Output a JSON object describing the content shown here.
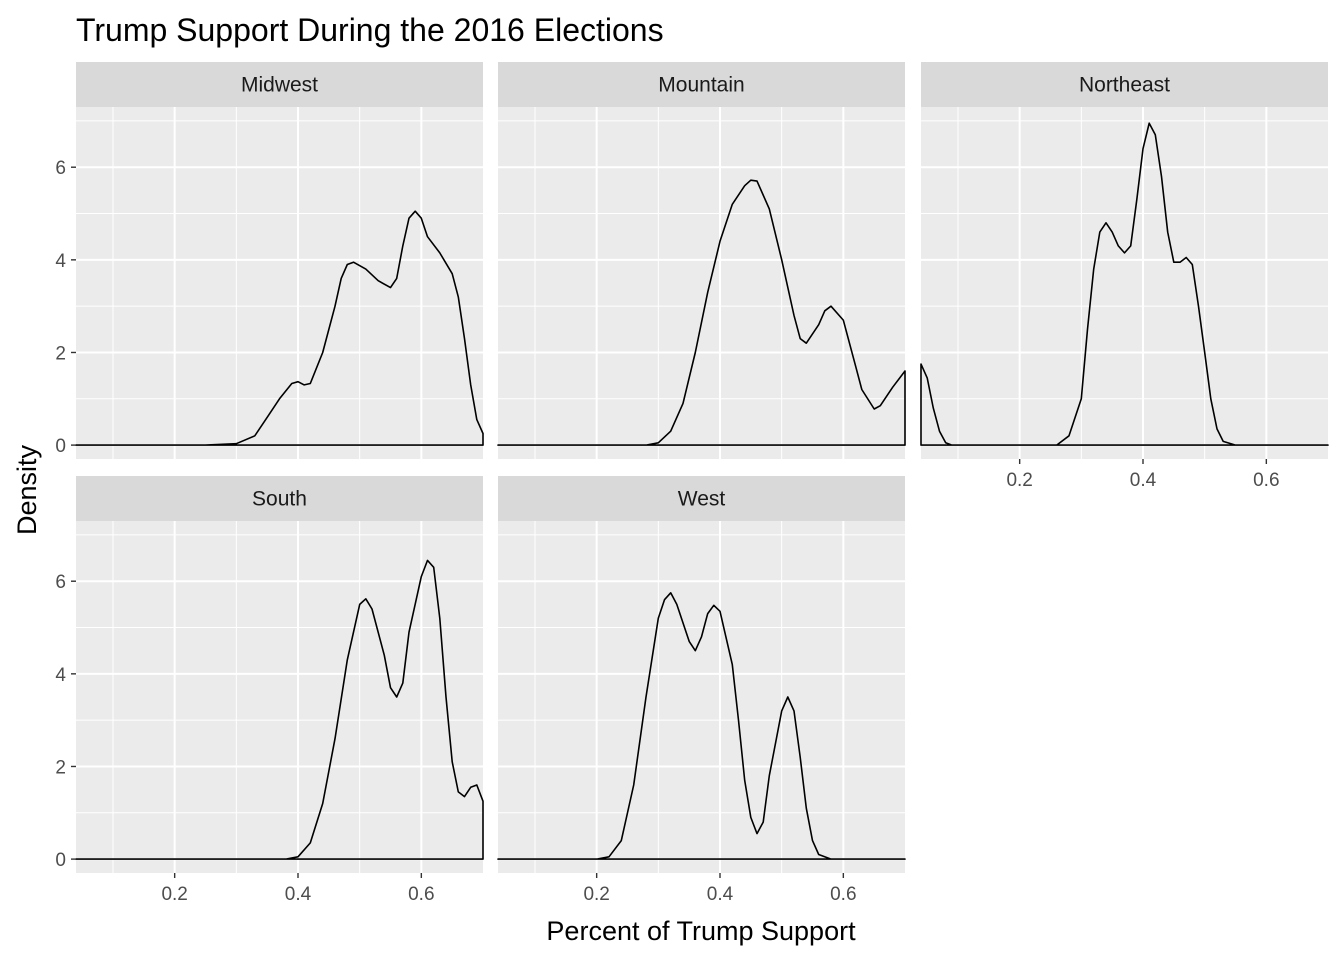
{
  "chart_data": {
    "type": "area",
    "title": "Trump Support During the 2016 Elections",
    "xlabel": "Percent of Trump Support",
    "ylabel": "Density",
    "xlim": [
      0.04,
      0.7
    ],
    "ylim": [
      -0.3,
      7.3
    ],
    "x_ticks": [
      0.2,
      0.4,
      0.6
    ],
    "x_tick_labels": [
      "0.2",
      "0.4",
      "0.6"
    ],
    "y_ticks": [
      0,
      2,
      4,
      6
    ],
    "y_tick_labels": [
      "0",
      "2",
      "4",
      "6"
    ],
    "grid": true,
    "facets": [
      {
        "name": "Midwest",
        "points": [
          [
            0.04,
            0
          ],
          [
            0.25,
            0
          ],
          [
            0.3,
            0.03
          ],
          [
            0.33,
            0.2
          ],
          [
            0.35,
            0.6
          ],
          [
            0.37,
            1.0
          ],
          [
            0.39,
            1.33
          ],
          [
            0.4,
            1.37
          ],
          [
            0.41,
            1.3
          ],
          [
            0.42,
            1.33
          ],
          [
            0.44,
            2.0
          ],
          [
            0.46,
            3.0
          ],
          [
            0.47,
            3.6
          ],
          [
            0.48,
            3.9
          ],
          [
            0.49,
            3.95
          ],
          [
            0.51,
            3.8
          ],
          [
            0.53,
            3.55
          ],
          [
            0.55,
            3.4
          ],
          [
            0.56,
            3.6
          ],
          [
            0.57,
            4.3
          ],
          [
            0.58,
            4.9
          ],
          [
            0.59,
            5.05
          ],
          [
            0.6,
            4.9
          ],
          [
            0.61,
            4.5
          ],
          [
            0.63,
            4.15
          ],
          [
            0.65,
            3.7
          ],
          [
            0.66,
            3.2
          ],
          [
            0.67,
            2.3
          ],
          [
            0.68,
            1.3
          ],
          [
            0.69,
            0.55
          ],
          [
            0.7,
            0.25
          ],
          [
            0.7,
            0
          ]
        ]
      },
      {
        "name": "Mountain",
        "points": [
          [
            0.04,
            0
          ],
          [
            0.28,
            0
          ],
          [
            0.3,
            0.05
          ],
          [
            0.32,
            0.3
          ],
          [
            0.34,
            0.9
          ],
          [
            0.36,
            2.0
          ],
          [
            0.38,
            3.3
          ],
          [
            0.4,
            4.4
          ],
          [
            0.42,
            5.2
          ],
          [
            0.44,
            5.6
          ],
          [
            0.45,
            5.72
          ],
          [
            0.46,
            5.7
          ],
          [
            0.48,
            5.1
          ],
          [
            0.5,
            4.0
          ],
          [
            0.52,
            2.8
          ],
          [
            0.53,
            2.3
          ],
          [
            0.54,
            2.2
          ],
          [
            0.56,
            2.6
          ],
          [
            0.57,
            2.9
          ],
          [
            0.58,
            3.0
          ],
          [
            0.6,
            2.7
          ],
          [
            0.62,
            1.7
          ],
          [
            0.63,
            1.2
          ],
          [
            0.65,
            0.78
          ],
          [
            0.66,
            0.85
          ],
          [
            0.68,
            1.25
          ],
          [
            0.7,
            1.6
          ],
          [
            0.7,
            0
          ]
        ]
      },
      {
        "name": "Northeast",
        "points": [
          [
            0.04,
            0
          ],
          [
            0.04,
            1.75
          ],
          [
            0.05,
            1.45
          ],
          [
            0.06,
            0.8
          ],
          [
            0.07,
            0.3
          ],
          [
            0.08,
            0.05
          ],
          [
            0.09,
            0
          ],
          [
            0.26,
            0
          ],
          [
            0.28,
            0.2
          ],
          [
            0.3,
            1.0
          ],
          [
            0.31,
            2.5
          ],
          [
            0.32,
            3.8
          ],
          [
            0.33,
            4.6
          ],
          [
            0.34,
            4.8
          ],
          [
            0.35,
            4.6
          ],
          [
            0.36,
            4.3
          ],
          [
            0.37,
            4.15
          ],
          [
            0.38,
            4.3
          ],
          [
            0.39,
            5.3
          ],
          [
            0.4,
            6.4
          ],
          [
            0.41,
            6.95
          ],
          [
            0.42,
            6.7
          ],
          [
            0.43,
            5.8
          ],
          [
            0.44,
            4.6
          ],
          [
            0.45,
            3.95
          ],
          [
            0.46,
            3.95
          ],
          [
            0.47,
            4.05
          ],
          [
            0.48,
            3.9
          ],
          [
            0.49,
            3.0
          ],
          [
            0.5,
            2.0
          ],
          [
            0.51,
            1.0
          ],
          [
            0.52,
            0.35
          ],
          [
            0.53,
            0.08
          ],
          [
            0.55,
            0
          ],
          [
            0.7,
            0
          ]
        ]
      },
      {
        "name": "South",
        "points": [
          [
            0.04,
            0
          ],
          [
            0.38,
            0
          ],
          [
            0.4,
            0.05
          ],
          [
            0.42,
            0.35
          ],
          [
            0.44,
            1.2
          ],
          [
            0.46,
            2.6
          ],
          [
            0.48,
            4.3
          ],
          [
            0.5,
            5.5
          ],
          [
            0.51,
            5.62
          ],
          [
            0.52,
            5.4
          ],
          [
            0.54,
            4.4
          ],
          [
            0.55,
            3.7
          ],
          [
            0.56,
            3.5
          ],
          [
            0.57,
            3.8
          ],
          [
            0.58,
            4.9
          ],
          [
            0.6,
            6.1
          ],
          [
            0.61,
            6.45
          ],
          [
            0.62,
            6.3
          ],
          [
            0.63,
            5.2
          ],
          [
            0.64,
            3.5
          ],
          [
            0.65,
            2.1
          ],
          [
            0.66,
            1.45
          ],
          [
            0.67,
            1.35
          ],
          [
            0.68,
            1.55
          ],
          [
            0.69,
            1.6
          ],
          [
            0.7,
            1.25
          ],
          [
            0.7,
            0
          ]
        ]
      },
      {
        "name": "West",
        "points": [
          [
            0.04,
            0
          ],
          [
            0.2,
            0
          ],
          [
            0.22,
            0.05
          ],
          [
            0.24,
            0.4
          ],
          [
            0.26,
            1.6
          ],
          [
            0.28,
            3.5
          ],
          [
            0.3,
            5.2
          ],
          [
            0.31,
            5.6
          ],
          [
            0.32,
            5.75
          ],
          [
            0.33,
            5.5
          ],
          [
            0.35,
            4.7
          ],
          [
            0.36,
            4.5
          ],
          [
            0.37,
            4.8
          ],
          [
            0.38,
            5.3
          ],
          [
            0.39,
            5.48
          ],
          [
            0.4,
            5.35
          ],
          [
            0.42,
            4.2
          ],
          [
            0.43,
            3.0
          ],
          [
            0.44,
            1.7
          ],
          [
            0.45,
            0.9
          ],
          [
            0.46,
            0.55
          ],
          [
            0.47,
            0.8
          ],
          [
            0.48,
            1.8
          ],
          [
            0.5,
            3.2
          ],
          [
            0.51,
            3.5
          ],
          [
            0.52,
            3.2
          ],
          [
            0.53,
            2.2
          ],
          [
            0.54,
            1.1
          ],
          [
            0.55,
            0.4
          ],
          [
            0.56,
            0.1
          ],
          [
            0.58,
            0
          ],
          [
            0.7,
            0
          ]
        ]
      }
    ]
  }
}
